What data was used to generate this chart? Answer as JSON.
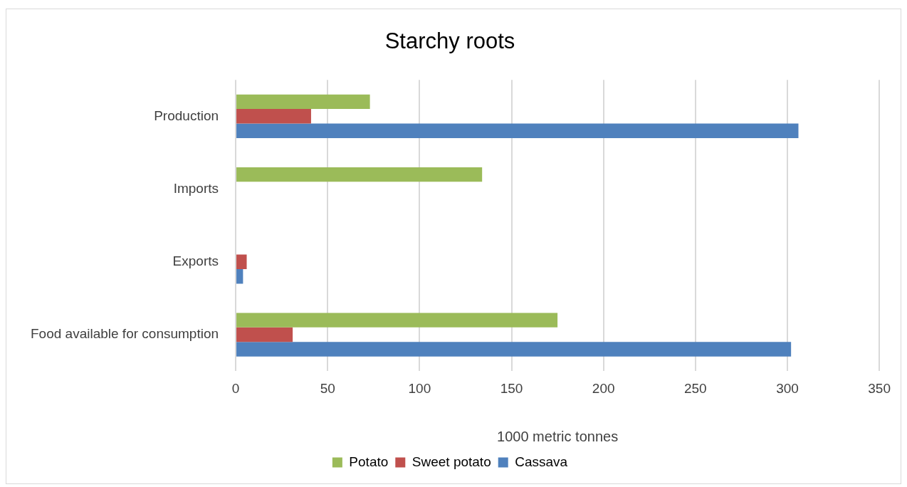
{
  "chart_data": {
    "type": "bar",
    "orientation": "horizontal",
    "title": "Starchy roots",
    "xlabel": "1000 metric tonnes",
    "categories": [
      "Production",
      "Imports",
      "Exports",
      "Food available for consumption"
    ],
    "series": [
      {
        "name": "Potato",
        "color": "#9bbb59",
        "values": [
          73,
          134,
          0,
          175
        ]
      },
      {
        "name": "Sweet potato",
        "color": "#c0504d",
        "values": [
          41,
          0,
          6,
          31
        ]
      },
      {
        "name": "Cassava",
        "color": "#4f81bd",
        "values": [
          306,
          0,
          4,
          302
        ]
      }
    ],
    "xlim": [
      0,
      350
    ],
    "xticks": [
      0,
      50,
      100,
      150,
      200,
      250,
      300,
      350
    ],
    "grid": "x",
    "legend": "bottom"
  }
}
